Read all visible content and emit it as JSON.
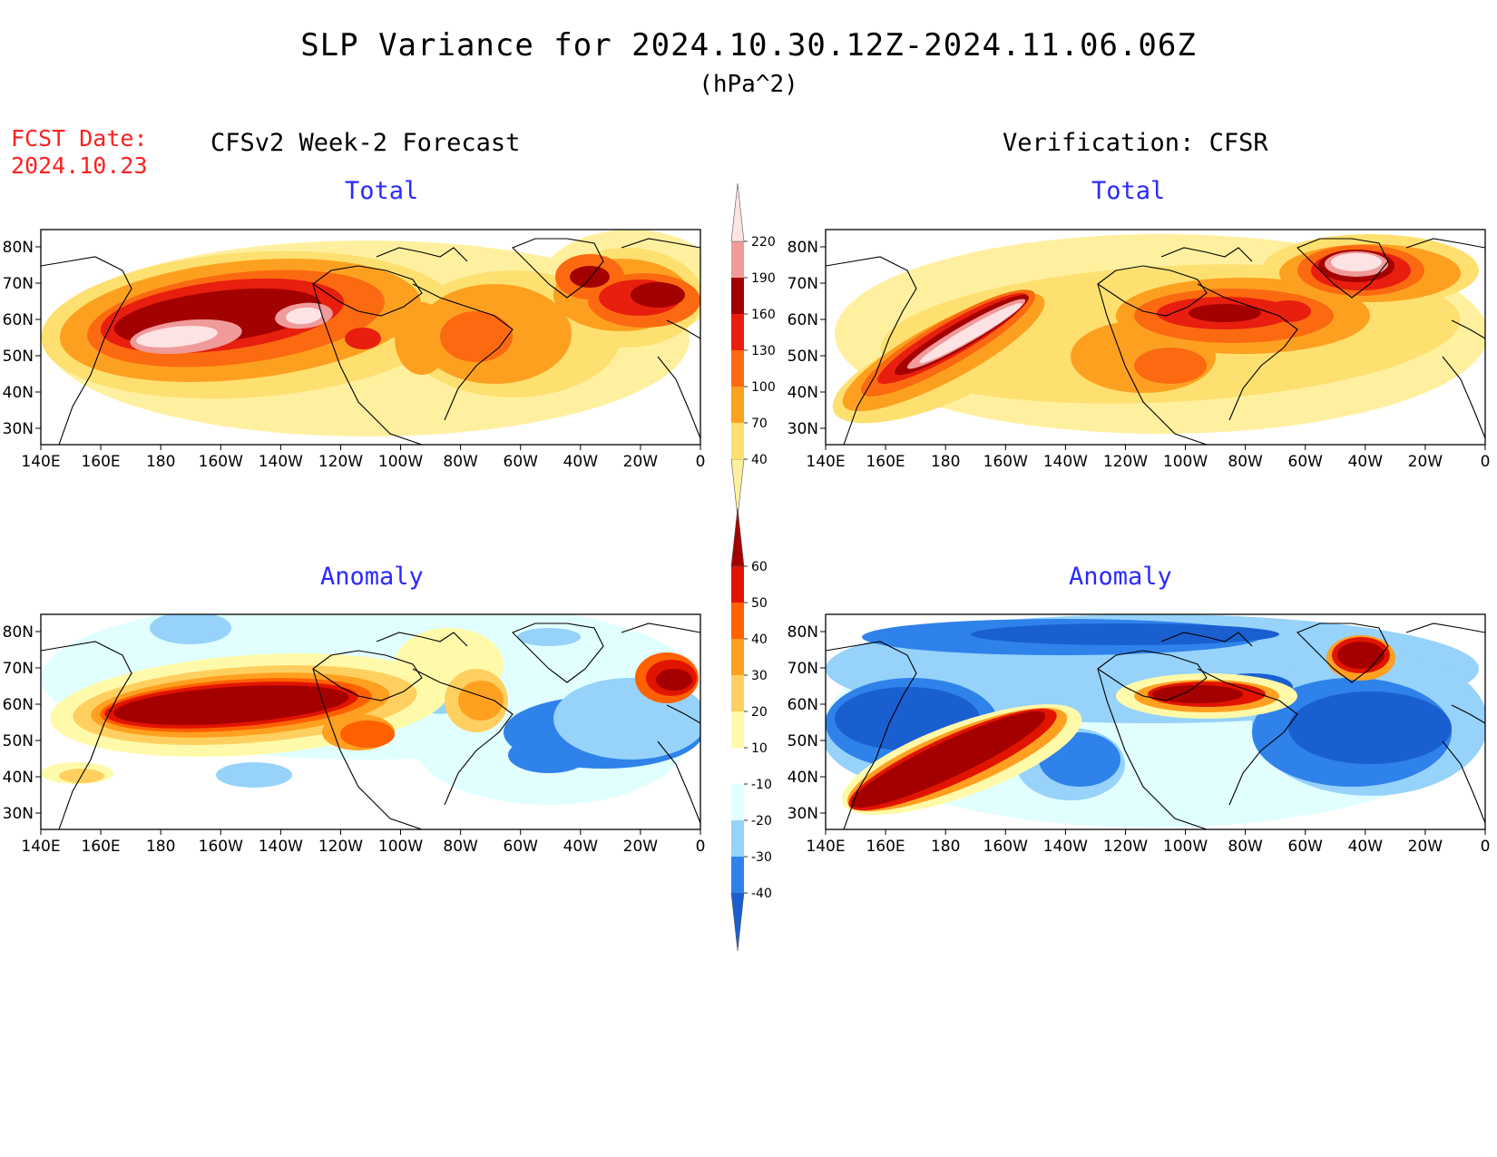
{
  "title": "SLP Variance for 2024.10.30.12Z-2024.11.06.06Z",
  "units": "(hPa^2)",
  "fcst_label": "FCST Date:",
  "fcst_date": "2024.10.23",
  "left_heading": "CFSv2 Week-2 Forecast",
  "right_heading": "Verification: CFSR",
  "panel_titles": {
    "total": "Total",
    "anomaly": "Anomaly"
  },
  "lat_labels": [
    "80N",
    "70N",
    "60N",
    "50N",
    "40N",
    "30N"
  ],
  "lon_labels": [
    "140E",
    "160E",
    "180",
    "160W",
    "140W",
    "120W",
    "100W",
    "80W",
    "60W",
    "40W",
    "20W",
    "0"
  ],
  "total_colorbar": {
    "levels": [
      "40",
      "70",
      "100",
      "130",
      "160",
      "190",
      "220"
    ],
    "colors": [
      "#fff0a0",
      "#fde070",
      "#fda020",
      "#fb6a10",
      "#e81e0f",
      "#a30000",
      "#f09a9a",
      "#fde3e3"
    ]
  },
  "anomaly_colorbar": {
    "levels": [
      "-40",
      "-30",
      "-20",
      "-10",
      "10",
      "20",
      "30",
      "40",
      "50",
      "60"
    ],
    "colors": [
      "#1a5fd0",
      "#2f82ea",
      "#96d2fa",
      "#e1ffff",
      "#ffffff",
      "#fffaaa",
      "#ffd060",
      "#ffa020",
      "#ff6000",
      "#e11400",
      "#a50000"
    ]
  },
  "palette": {
    "t1": "#fff0a0",
    "t2": "#fde070",
    "t3": "#fda020",
    "t4": "#fb6a10",
    "t5": "#e81e0f",
    "t6": "#a30000",
    "t7": "#f09a9a",
    "t8": "#fde3e3",
    "n1": "#e1ffff",
    "n2": "#96d2fa",
    "n3": "#2f82ea",
    "n4": "#1a5fd0",
    "p1": "#fffaaa",
    "p2": "#ffd060",
    "p3": "#ffa020",
    "p4": "#ff6000",
    "p5": "#e11400",
    "p6": "#a50000"
  }
}
